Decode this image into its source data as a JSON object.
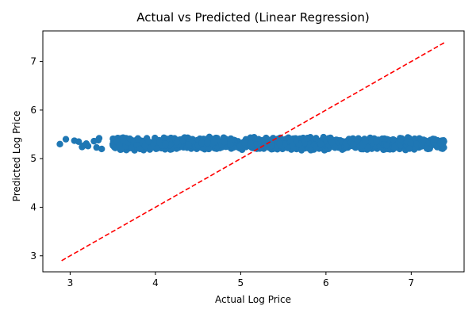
{
  "chart_data": {
    "type": "scatter",
    "title": "Actual vs Predicted (Linear Regression)",
    "xlabel": "Actual Log Price",
    "ylabel": "Predicted Log Price",
    "xlim": [
      2.68,
      7.62
    ],
    "ylim": [
      2.67,
      7.63
    ],
    "xticks": [
      3,
      4,
      5,
      6,
      7
    ],
    "yticks": [
      3,
      4,
      5,
      6,
      7
    ],
    "grid": false,
    "point_color": "#1f77b4",
    "reference_line": {
      "style": "dashed",
      "color": "#ff0000",
      "from": [
        2.9,
        2.9
      ],
      "to": [
        7.4,
        7.4
      ]
    },
    "series": [
      {
        "points": [
          [
            2.88,
            5.3
          ],
          [
            2.95,
            5.4
          ],
          [
            3.05,
            5.37
          ],
          [
            3.1,
            5.35
          ],
          [
            3.14,
            5.24
          ],
          [
            3.16,
            5.27
          ],
          [
            3.19,
            5.31
          ],
          [
            3.21,
            5.26
          ],
          [
            3.28,
            5.36
          ],
          [
            3.31,
            5.23
          ],
          [
            3.33,
            5.38
          ],
          [
            3.34,
            5.42
          ],
          [
            3.37,
            5.2
          ],
          [
            3.5,
            5.3
          ],
          [
            3.52,
            5.4
          ],
          [
            3.53,
            5.22
          ],
          [
            3.55,
            5.35
          ],
          [
            3.58,
            5.28
          ],
          [
            3.6,
            5.19
          ],
          [
            3.62,
            5.38
          ],
          [
            3.65,
            5.25
          ],
          [
            3.68,
            5.33
          ],
          [
            3.7,
            5.41
          ],
          [
            3.72,
            5.22
          ],
          [
            3.75,
            5.36
          ],
          [
            3.78,
            5.28
          ],
          [
            3.8,
            5.4
          ],
          [
            3.82,
            5.2
          ],
          [
            3.85,
            5.32
          ],
          [
            3.88,
            5.26
          ],
          [
            3.9,
            5.42
          ],
          [
            3.92,
            5.35
          ],
          [
            3.95,
            5.23
          ],
          [
            3.98,
            5.3
          ],
          [
            4.0,
            5.39
          ],
          [
            4.02,
            5.21
          ],
          [
            4.05,
            5.34
          ],
          [
            4.08,
            5.27
          ],
          [
            4.1,
            5.43
          ],
          [
            4.12,
            5.3
          ]
        ],
        "bands": [
          {
            "x_from": 3.5,
            "x_to": 7.4,
            "y_min": 5.17,
            "y_max": 5.45,
            "count": 1200,
            "seed": 7
          }
        ]
      }
    ]
  }
}
